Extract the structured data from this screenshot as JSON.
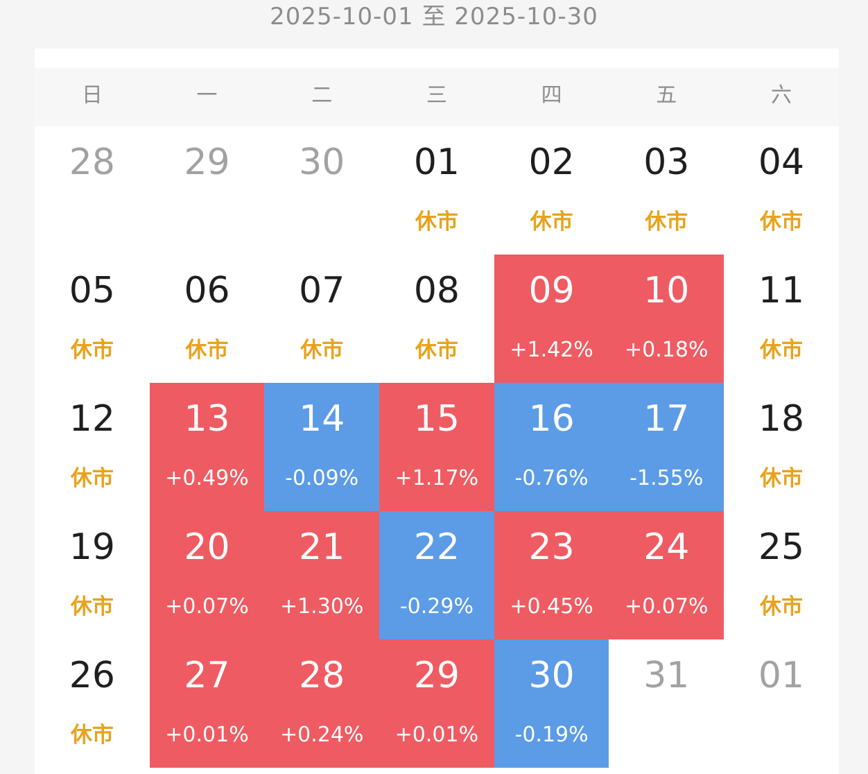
{
  "range_title": "2025-10-01 至 2025-10-30",
  "weekdays": [
    "日",
    "一",
    "二",
    "三",
    "四",
    "五",
    "六"
  ],
  "colors": {
    "up": "#ef5b62",
    "down": "#5c9be6",
    "closed_label": "#e8a21c",
    "other_month": "#a2a2a2"
  },
  "days": [
    {
      "day": "28",
      "sub": "",
      "type": "other"
    },
    {
      "day": "29",
      "sub": "",
      "type": "other"
    },
    {
      "day": "30",
      "sub": "",
      "type": "other"
    },
    {
      "day": "01",
      "sub": "休市",
      "type": "closed"
    },
    {
      "day": "02",
      "sub": "休市",
      "type": "closed"
    },
    {
      "day": "03",
      "sub": "休市",
      "type": "closed"
    },
    {
      "day": "04",
      "sub": "休市",
      "type": "closed"
    },
    {
      "day": "05",
      "sub": "休市",
      "type": "closed"
    },
    {
      "day": "06",
      "sub": "休市",
      "type": "closed"
    },
    {
      "day": "07",
      "sub": "休市",
      "type": "closed"
    },
    {
      "day": "08",
      "sub": "休市",
      "type": "closed"
    },
    {
      "day": "09",
      "sub": "+1.42%",
      "type": "up"
    },
    {
      "day": "10",
      "sub": "+0.18%",
      "type": "up"
    },
    {
      "day": "11",
      "sub": "休市",
      "type": "closed"
    },
    {
      "day": "12",
      "sub": "休市",
      "type": "closed"
    },
    {
      "day": "13",
      "sub": "+0.49%",
      "type": "up"
    },
    {
      "day": "14",
      "sub": "-0.09%",
      "type": "down"
    },
    {
      "day": "15",
      "sub": "+1.17%",
      "type": "up"
    },
    {
      "day": "16",
      "sub": "-0.76%",
      "type": "down"
    },
    {
      "day": "17",
      "sub": "-1.55%",
      "type": "down"
    },
    {
      "day": "18",
      "sub": "休市",
      "type": "closed"
    },
    {
      "day": "19",
      "sub": "休市",
      "type": "closed"
    },
    {
      "day": "20",
      "sub": "+0.07%",
      "type": "up"
    },
    {
      "day": "21",
      "sub": "+1.30%",
      "type": "up"
    },
    {
      "day": "22",
      "sub": "-0.29%",
      "type": "down"
    },
    {
      "day": "23",
      "sub": "+0.45%",
      "type": "up"
    },
    {
      "day": "24",
      "sub": "+0.07%",
      "type": "up"
    },
    {
      "day": "25",
      "sub": "休市",
      "type": "closed"
    },
    {
      "day": "26",
      "sub": "休市",
      "type": "closed"
    },
    {
      "day": "27",
      "sub": "+0.01%",
      "type": "up"
    },
    {
      "day": "28",
      "sub": "+0.24%",
      "type": "up"
    },
    {
      "day": "29",
      "sub": "+0.01%",
      "type": "up"
    },
    {
      "day": "30",
      "sub": "-0.19%",
      "type": "down"
    },
    {
      "day": "31",
      "sub": "",
      "type": "other"
    },
    {
      "day": "01",
      "sub": "",
      "type": "other"
    }
  ]
}
